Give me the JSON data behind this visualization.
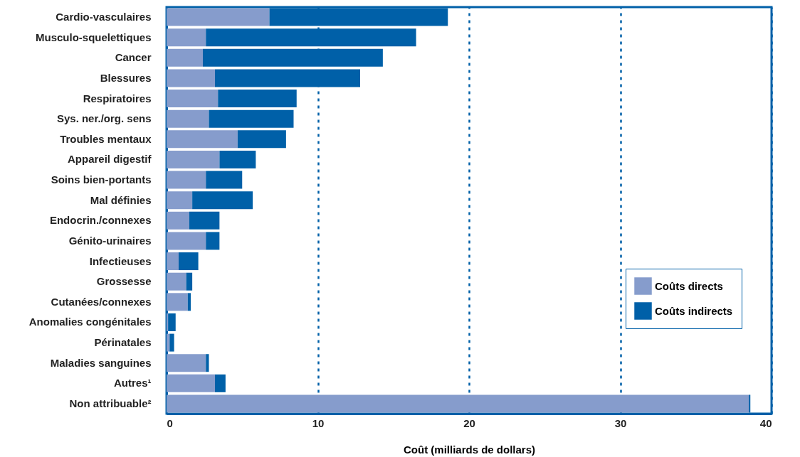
{
  "chart_data": {
    "type": "bar",
    "orientation": "horizontal",
    "stacked": true,
    "xlabel": "Coût (milliards de dollars)",
    "categories": [
      "Cardio-vasculaires",
      "Musculo-squelettiques",
      "Cancer",
      "Blessures",
      "Respiratoires",
      "Sys. ner./org. sens",
      "Troubles mentaux",
      "Appareil digestif",
      "Soins bien-portants",
      "Mal définies",
      "Endocrin./connexes",
      "Génito-urinaires",
      "Infectieuses",
      "Grossesse",
      "Cutanées/connexes",
      "Anomalies congénitales",
      "Périnatales",
      "Maladies sanguines",
      "Autres¹",
      "Non attribuable²"
    ],
    "series": [
      {
        "name": "Coûts directs",
        "color": "#869ccc",
        "values": [
          6.8,
          2.6,
          2.4,
          3.2,
          3.4,
          2.8,
          4.7,
          3.5,
          2.6,
          1.7,
          1.5,
          2.6,
          0.8,
          1.3,
          1.4,
          0.1,
          0.2,
          2.6,
          3.2,
          38.5
        ]
      },
      {
        "name": "Coûts indirects",
        "color": "#0060a8",
        "values": [
          11.8,
          13.9,
          11.9,
          9.6,
          5.2,
          5.6,
          3.2,
          2.4,
          2.4,
          4.0,
          2.0,
          0.9,
          1.3,
          0.4,
          0.2,
          0.5,
          0.3,
          0.2,
          0.7,
          0.1
        ]
      }
    ],
    "xlim": [
      0,
      40
    ],
    "xticks": [
      0,
      10,
      20,
      30,
      40
    ],
    "grid": "x",
    "legend": "bottom right"
  }
}
